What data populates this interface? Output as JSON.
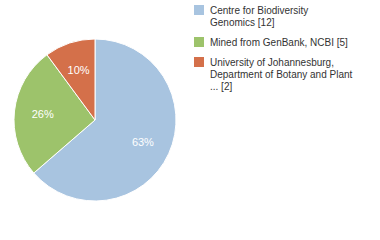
{
  "chart_data": {
    "type": "pie",
    "categories": [
      "Centre for Biodiversity\nGenomics [12]",
      "Mined from GenBank, NCBI [5]",
      "University of Johannesburg,\nDepartment of Botany and Plant\n... [2]"
    ],
    "values": [
      63,
      26,
      10
    ],
    "value_labels": [
      "63%",
      "26%",
      "10%"
    ],
    "colors": [
      "#a8c4e0",
      "#9dc36b",
      "#d4704a"
    ],
    "data_labels": true,
    "legend": "right"
  }
}
